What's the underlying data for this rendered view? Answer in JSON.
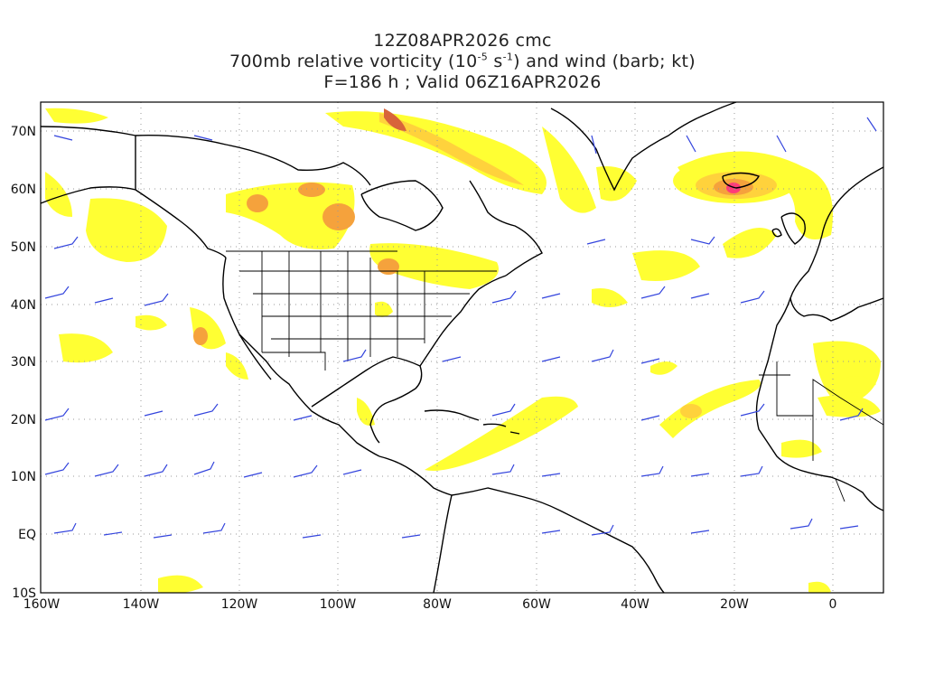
{
  "title": {
    "line1": "12Z08APR2026 cmc",
    "line2_a": "700mb relative vorticity (10",
    "line2_exp1": "-5",
    "line2_b": " s",
    "line2_exp2": "-1",
    "line2_c": ") and wind (barb; kt)",
    "line3": "F=186 h ; Valid 06Z16APR2026"
  },
  "axes": {
    "lat_labels": [
      "70N",
      "60N",
      "50N",
      "40N",
      "30N",
      "20N",
      "10N",
      "EQ",
      "10S"
    ],
    "lat_values": [
      70,
      60,
      50,
      40,
      30,
      20,
      10,
      0,
      -10
    ],
    "lon_labels": [
      "160W",
      "140W",
      "120W",
      "100W",
      "80W",
      "60W",
      "40W",
      "20W",
      "0"
    ],
    "lon_values": [
      -160,
      -140,
      -120,
      -100,
      -80,
      -60,
      -40,
      -20,
      0
    ],
    "lon_range": [
      -160,
      10
    ],
    "lat_range": [
      -10,
      75
    ],
    "grid": "dotted"
  },
  "colors": {
    "contour_light": "#ffff33",
    "contour_mid": "#ffd23c",
    "contour_orange": "#f5a23c",
    "contour_dark": "#d8643a",
    "contour_max": "#ff3c78",
    "barb": "#3344dd",
    "coast": "#000000"
  }
}
